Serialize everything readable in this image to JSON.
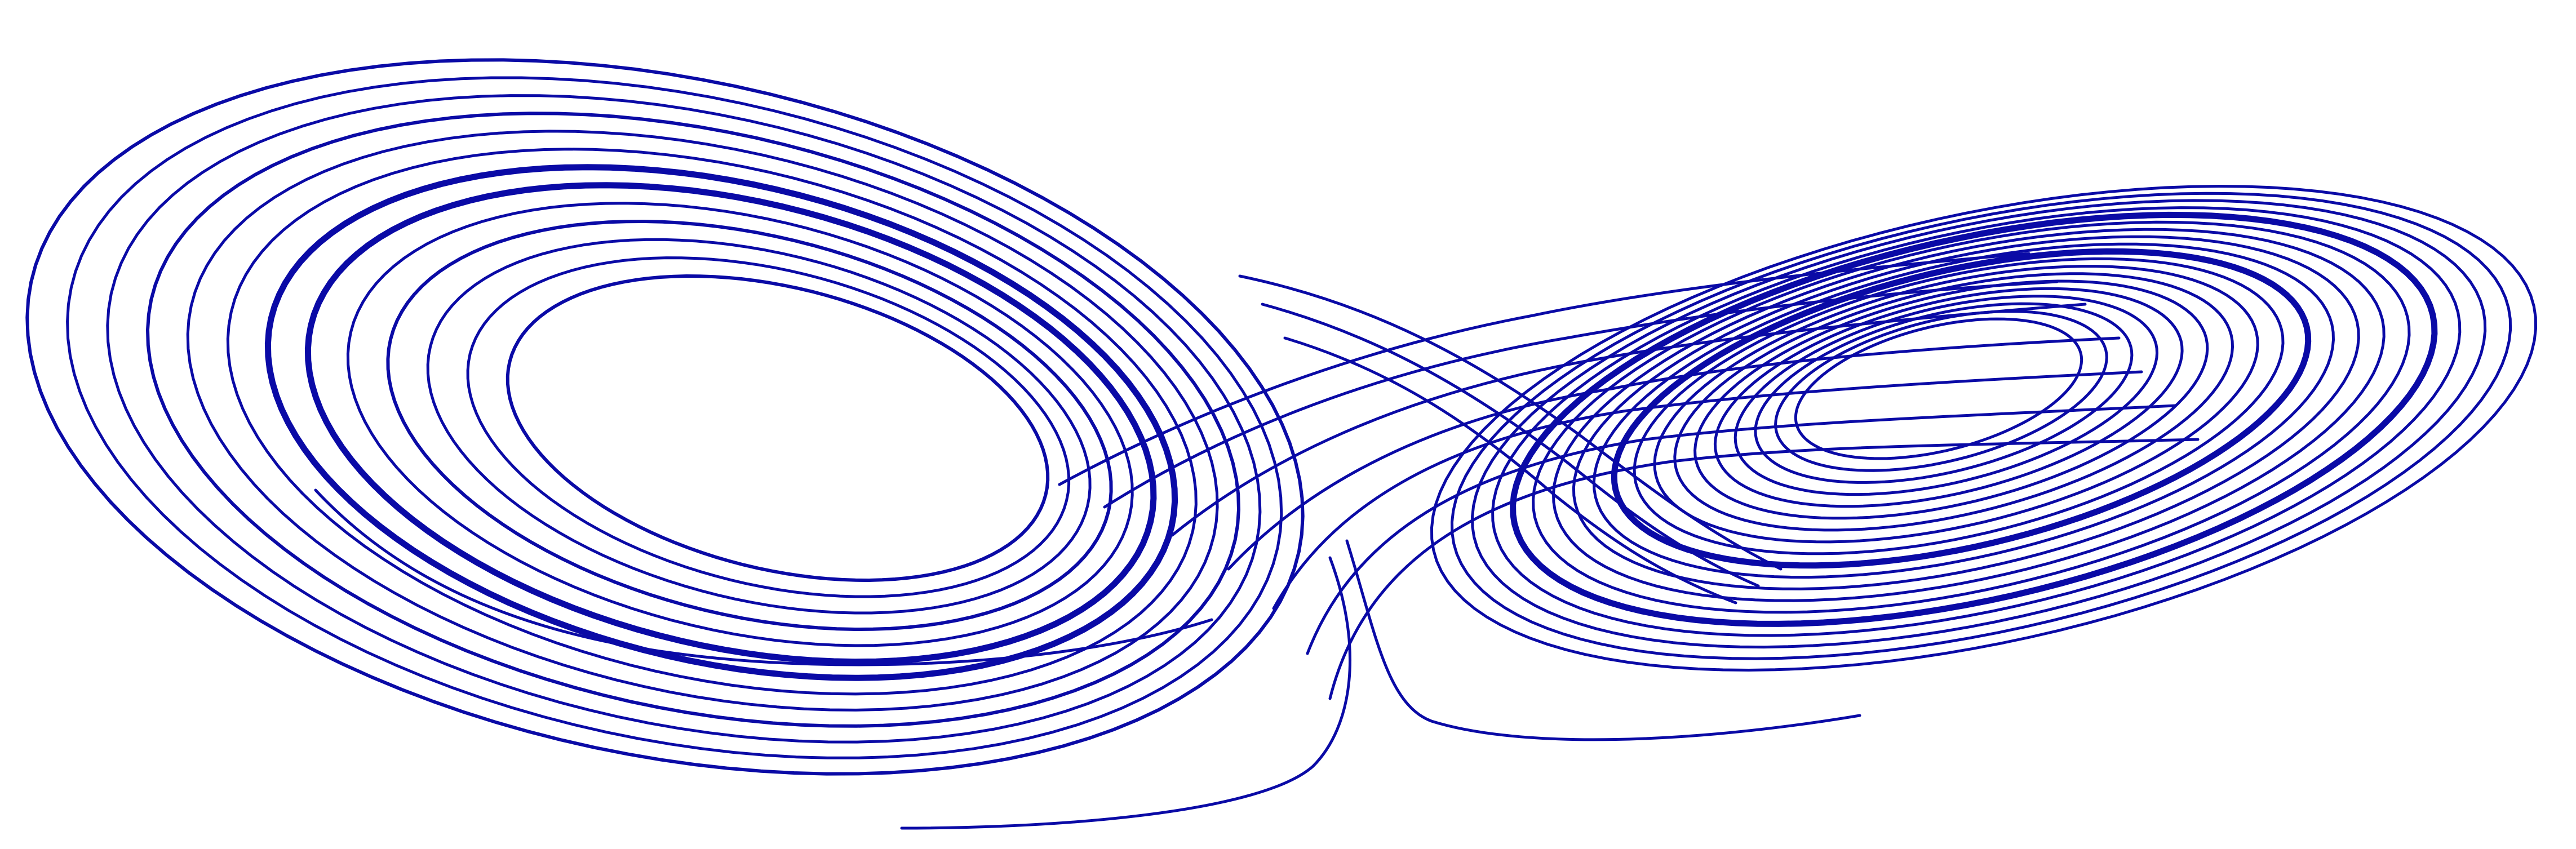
{
  "figure": {
    "subject": "lorenz-attractor",
    "view": "butterfly-projection",
    "stroke_color": "#0a0aa6",
    "background_color": "#ffffff",
    "left_lobe_loops": 13,
    "right_lobe_loops": 19
  }
}
